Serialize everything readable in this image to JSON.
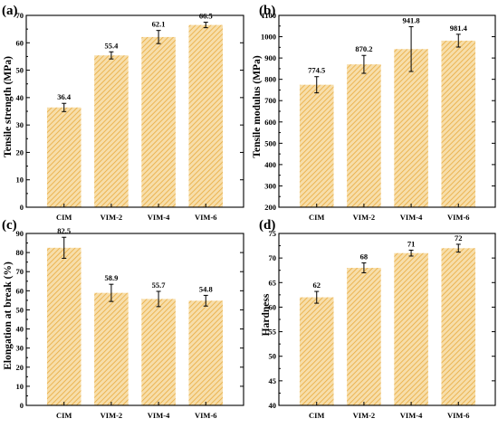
{
  "chart_data": [
    {
      "type": "bar",
      "panel": "(a)",
      "categories": [
        "CIM",
        "VIM-2",
        "VIM-4",
        "VIM-6"
      ],
      "values": [
        36.4,
        55.4,
        62.1,
        66.5
      ],
      "errors": [
        1.5,
        1.3,
        2.4,
        1.0
      ],
      "data_labels": [
        "36.4",
        "55.4",
        "62.1",
        "66.5"
      ],
      "ylabel": "Tensile strength (MPa)",
      "ylim": [
        0,
        70
      ],
      "yticks": [
        0,
        10,
        20,
        30,
        40,
        50,
        60,
        70
      ],
      "grid": false
    },
    {
      "type": "bar",
      "panel": "(b)",
      "categories": [
        "CIM",
        "VIM-2",
        "VIM-4",
        "VIM-6"
      ],
      "values": [
        774.5,
        870.2,
        941.8,
        981.4
      ],
      "errors": [
        38,
        42,
        105,
        30
      ],
      "data_labels": [
        "774.5",
        "870.2",
        "941.8",
        "981.4"
      ],
      "ylabel": "Tensile modulus (MPa)",
      "ylim": [
        200,
        1100
      ],
      "yticks": [
        200,
        300,
        400,
        500,
        600,
        700,
        800,
        900,
        1000,
        1100
      ],
      "grid": false
    },
    {
      "type": "bar",
      "panel": "(c)",
      "categories": [
        "CIM",
        "VIM-2",
        "VIM-4",
        "VIM-6"
      ],
      "values": [
        82.5,
        58.9,
        55.7,
        54.8
      ],
      "errors": [
        5.5,
        4.5,
        4.0,
        2.8
      ],
      "data_labels": [
        "82.5",
        "58.9",
        "55.7",
        "54.8"
      ],
      "ylabel": "Elongation at break (%)",
      "ylim": [
        0,
        90
      ],
      "yticks": [
        0,
        10,
        20,
        30,
        40,
        50,
        60,
        70,
        80,
        90
      ],
      "grid": false
    },
    {
      "type": "bar",
      "panel": "(d)",
      "categories": [
        "CIM",
        "VIM-2",
        "VIM-4",
        "VIM-6"
      ],
      "values": [
        62,
        68,
        71,
        72
      ],
      "errors": [
        1.2,
        1.0,
        0.6,
        0.8
      ],
      "data_labels": [
        "62",
        "68",
        "71",
        "72"
      ],
      "ylabel": "Hardness",
      "ylim": [
        40,
        75
      ],
      "yticks": [
        40,
        45,
        50,
        55,
        60,
        65,
        70,
        75
      ],
      "grid": false
    }
  ],
  "colors": {
    "bar_fill": "#f7deaa",
    "bar_hatch": "#e9ab3e",
    "axis": "#000000"
  }
}
